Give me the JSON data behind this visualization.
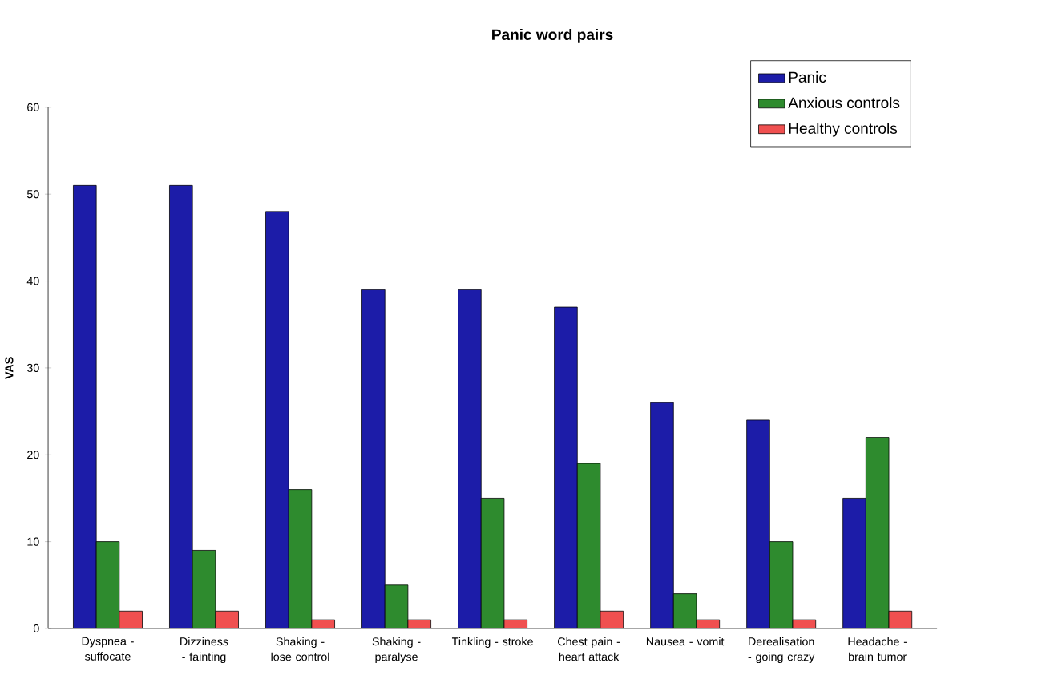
{
  "chart_data": {
    "type": "bar",
    "title": "Panic word pairs",
    "ylabel": "VAS",
    "categories": [
      "Dyspnea - suffocate",
      "Dizziness - fainting",
      "Shaking - lose control",
      "Shaking - paralyse",
      "Tinkling - stroke",
      "Chest pain - heart attack",
      "Nausea - vomit",
      "Derealisation - going crazy",
      "Headache - brain tumor"
    ],
    "series": [
      {
        "name": "Panic",
        "color": "#1c1ca8",
        "values": [
          51,
          51,
          48,
          39,
          39,
          37,
          26,
          24,
          15
        ]
      },
      {
        "name": "Anxious controls",
        "color": "#2e8b2e",
        "values": [
          10,
          9,
          16,
          5,
          15,
          19,
          4,
          10,
          22
        ]
      },
      {
        "name": "Healthy controls",
        "color": "#f05050",
        "values": [
          2,
          2,
          1,
          1,
          1,
          2,
          1,
          1,
          2
        ]
      }
    ],
    "ylim": [
      0,
      60
    ],
    "yticks": [
      0,
      10,
      20,
      30,
      40,
      50,
      60
    ],
    "grid": false,
    "legend": "top right"
  }
}
